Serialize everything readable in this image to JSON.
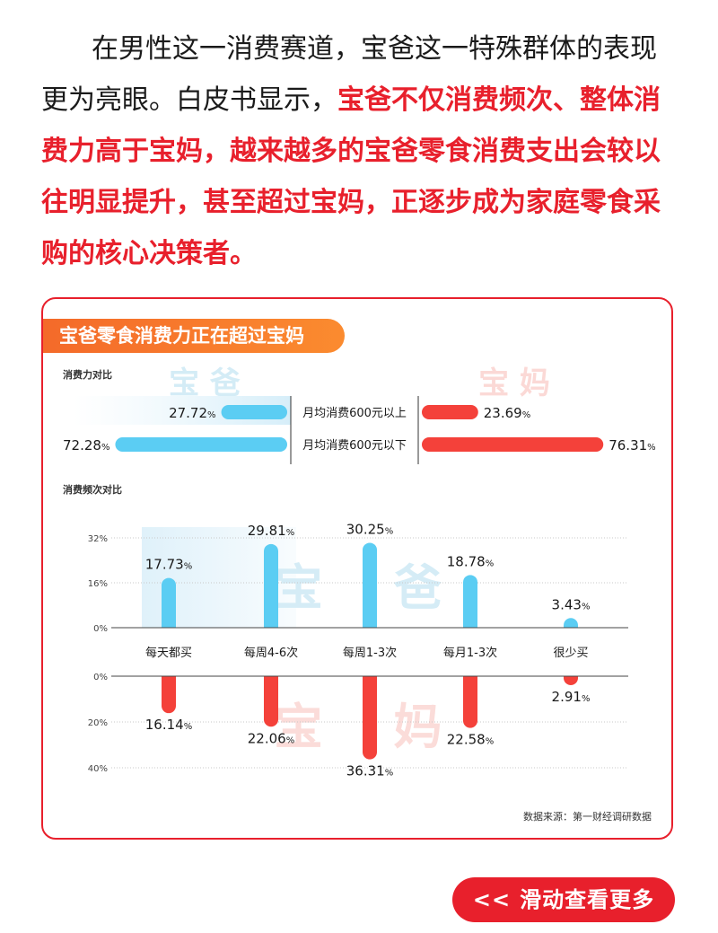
{
  "article": {
    "text_plain": "在男性这一消费赛道，宝爸这一特殊群体的表现更为亮眼。白皮书显示，",
    "text_highlight": "宝爸不仅消费频次、整体消费力高于宝妈，越来越多的宝爸零食消费支出会较以往明显提升，甚至超过宝妈，正逐步成为家庭零食采购的核心决策者。"
  },
  "card": {
    "title": "宝爸零食消费力正在超过宝妈",
    "source": "数据来源：第一财经调研数据"
  },
  "colors": {
    "dad": "#5bcdf3",
    "mom": "#f4413a",
    "accent": "#e8202c",
    "title_bg": "#f4762c"
  },
  "chart_data": [
    {
      "type": "bar",
      "orientation": "horizontal-diverging",
      "title": "消费力对比",
      "categories": [
        "月均消费600元以上",
        "月均消费600元以下"
      ],
      "series": [
        {
          "name": "宝 爸",
          "values": [
            27.72,
            72.28
          ]
        },
        {
          "name": "宝 妈",
          "values": [
            23.69,
            76.31
          ]
        }
      ],
      "unit": "%"
    },
    {
      "type": "bar",
      "orientation": "vertical-mirrored",
      "title": "消费频次对比",
      "categories": [
        "每天都买",
        "每周4-6次",
        "每周1-3次",
        "每月1-3次",
        "很少买"
      ],
      "series": [
        {
          "name": "宝 爸",
          "values": [
            17.73,
            29.81,
            30.25,
            18.78,
            3.43
          ]
        },
        {
          "name": "宝 妈",
          "values": [
            16.14,
            22.06,
            36.31,
            22.58,
            2.91
          ]
        }
      ],
      "top_ticks": [
        "32%",
        "16%",
        "0%"
      ],
      "bottom_ticks": [
        "0%",
        "20%",
        "40%"
      ],
      "top_ylim": [
        0,
        32
      ],
      "bottom_ylim": [
        0,
        40
      ],
      "grid": true,
      "unit": "%"
    }
  ],
  "cta": {
    "arrows": "<<",
    "label": "滑动查看更多"
  }
}
